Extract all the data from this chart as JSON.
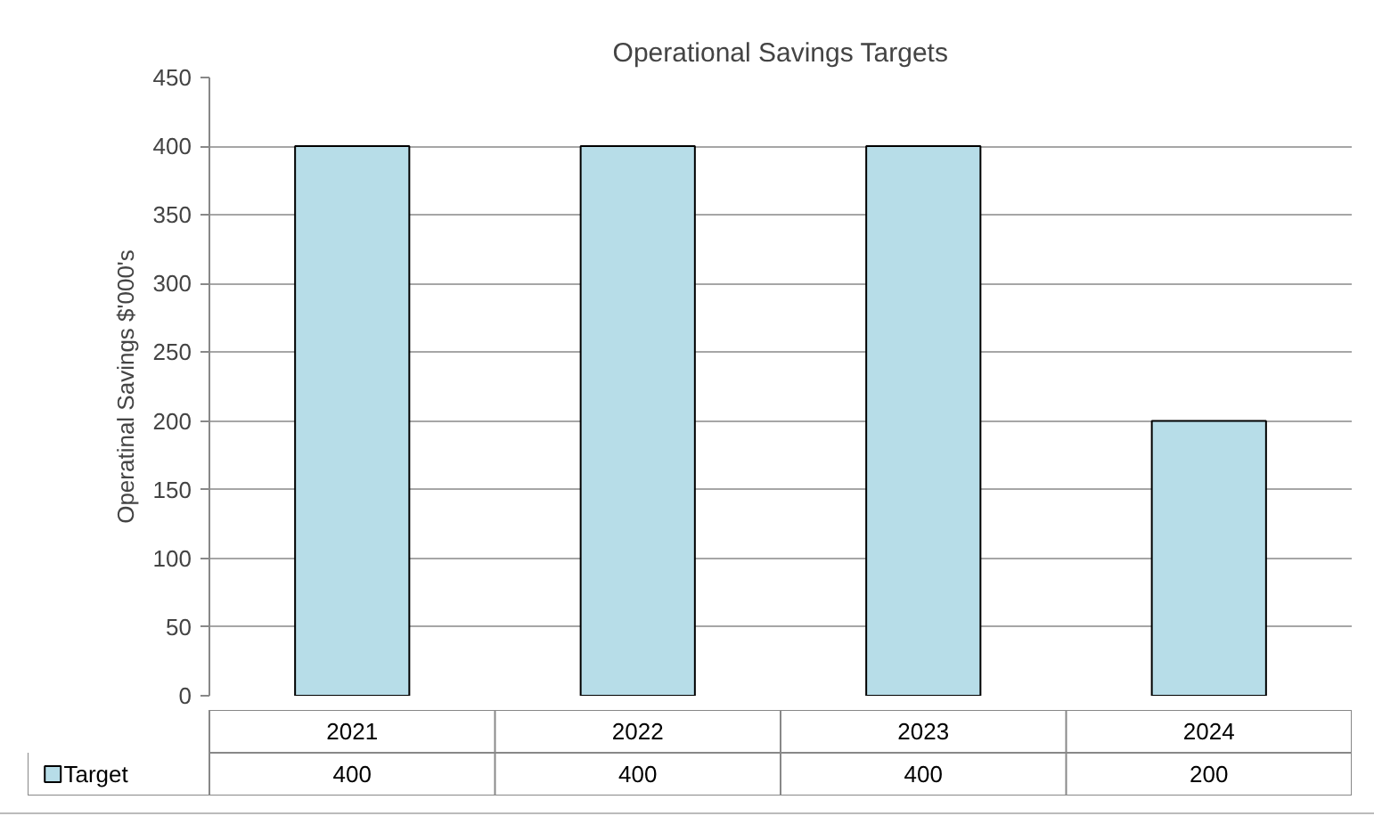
{
  "chart_data": {
    "type": "bar",
    "title": "Operational Savings Targets",
    "ylabel": "Operatinal Savings $'000's",
    "categories": [
      "2021",
      "2022",
      "2023",
      "2024"
    ],
    "series": [
      {
        "name": "Target",
        "color": "#b7dde8",
        "values": [
          400,
          400,
          400,
          200
        ]
      }
    ],
    "ylim": [
      0,
      450
    ],
    "yticks": [
      0,
      50,
      100,
      150,
      200,
      250,
      300,
      350,
      400,
      450
    ],
    "grid": "y",
    "legend": "bottom",
    "data_labels": true
  }
}
